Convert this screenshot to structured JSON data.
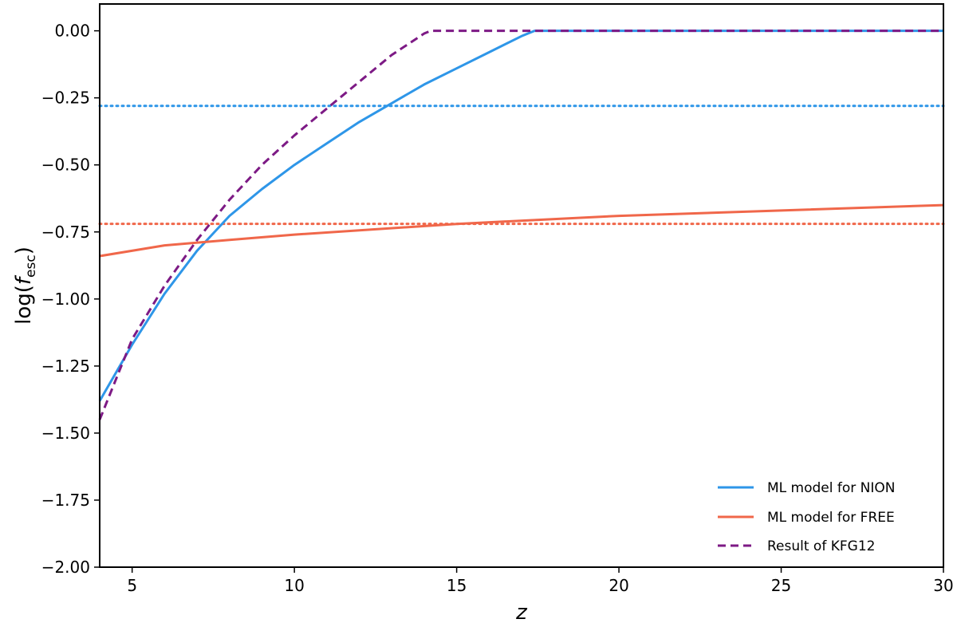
{
  "chart_data": {
    "type": "line",
    "title": "",
    "xlabel": "z",
    "ylabel": {
      "prefix": "log(",
      "var": "f",
      "sub": "esc",
      "suffix": ")"
    },
    "xlim": [
      4,
      30
    ],
    "ylim": [
      -2.0,
      0.1
    ],
    "x_ticks": [
      5,
      10,
      15,
      20,
      25,
      30
    ],
    "x_tick_labels": [
      "5",
      "10",
      "15",
      "20",
      "25",
      "30"
    ],
    "y_ticks": [
      0.0,
      -0.25,
      -0.5,
      -0.75,
      -1.0,
      -1.25,
      -1.5,
      -1.75,
      -2.0
    ],
    "y_tick_labels": [
      "0.00",
      "−0.25",
      "−0.50",
      "−0.75",
      "−1.00",
      "−1.25",
      "−1.50",
      "−1.75",
      "−2.00"
    ],
    "grid": false,
    "legend_position": "lower-right",
    "series": [
      {
        "name": "ML model for NION",
        "color": "#2e96e8",
        "style": "solid",
        "x": [
          4,
          5,
          6,
          7,
          8,
          9,
          10,
          11,
          12,
          13,
          14,
          15,
          16,
          17,
          17.4,
          20,
          25,
          30
        ],
        "y": [
          -1.38,
          -1.17,
          -0.98,
          -0.82,
          -0.69,
          -0.59,
          -0.5,
          -0.42,
          -0.34,
          -0.27,
          -0.2,
          -0.14,
          -0.08,
          -0.02,
          0.0,
          0.0,
          0.0,
          0.0
        ]
      },
      {
        "name": "ML model for FREE",
        "color": "#f0674a",
        "style": "solid",
        "x": [
          4,
          6,
          8,
          10,
          15,
          20,
          25,
          30
        ],
        "y": [
          -0.84,
          -0.8,
          -0.78,
          -0.76,
          -0.72,
          -0.69,
          -0.67,
          -0.65
        ]
      },
      {
        "name": "Result of KFG12",
        "color": "#7d1a85",
        "style": "dashed",
        "x": [
          4,
          5,
          6,
          7,
          8,
          9,
          10,
          11,
          12,
          13,
          14,
          14.2,
          20,
          25,
          30
        ],
        "y": [
          -1.45,
          -1.15,
          -0.95,
          -0.78,
          -0.63,
          -0.5,
          -0.39,
          -0.29,
          -0.19,
          -0.09,
          -0.01,
          0.0,
          0.0,
          0.0,
          0.0
        ]
      }
    ],
    "reference_lines": [
      {
        "y": -0.28,
        "color": "#2e96e8",
        "style": "dotted"
      },
      {
        "y": -0.72,
        "color": "#f0674a",
        "style": "dotted"
      }
    ]
  }
}
